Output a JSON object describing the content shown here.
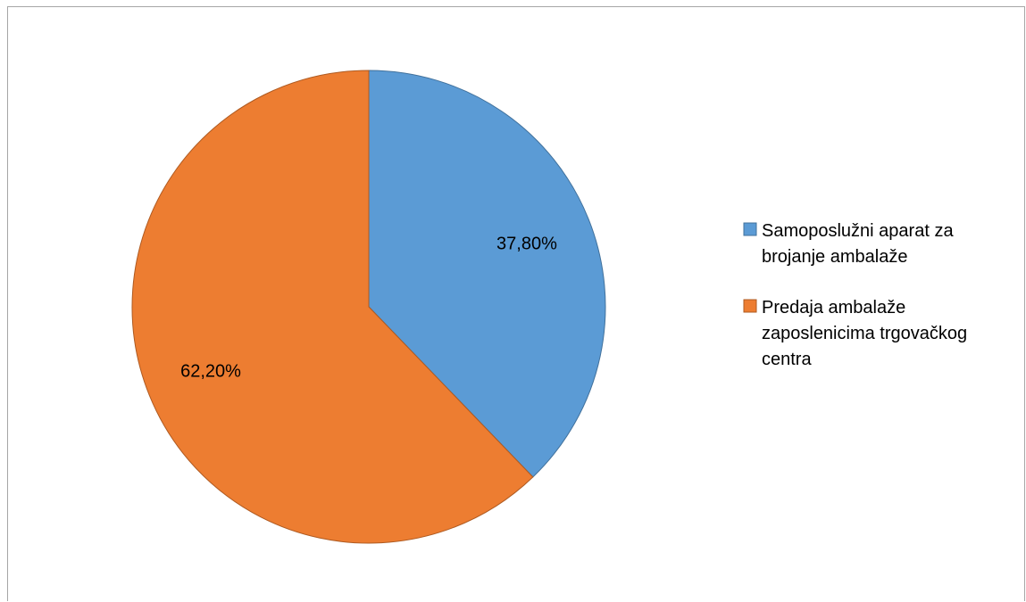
{
  "chart_data": {
    "type": "pie",
    "categories": [
      "Samoposlužni aparat za brojanje ambalaže",
      "Predaja ambalaže zaposlenicima trgovačkog centra"
    ],
    "values": [
      37.8,
      62.2
    ],
    "data_labels": [
      "37,80%",
      "62,20%"
    ],
    "colors": [
      "#5b9bd5",
      "#ed7d31"
    ],
    "legend": {
      "position": "right",
      "entries": [
        {
          "lines": [
            "Samoposlužni aparat za",
            "brojanje ambalaže"
          ],
          "color": "#5b9bd5"
        },
        {
          "lines": [
            "Predaja ambalaže",
            "zaposlenicima trgovačkog",
            "centra"
          ],
          "color": "#ed7d31"
        }
      ]
    }
  }
}
